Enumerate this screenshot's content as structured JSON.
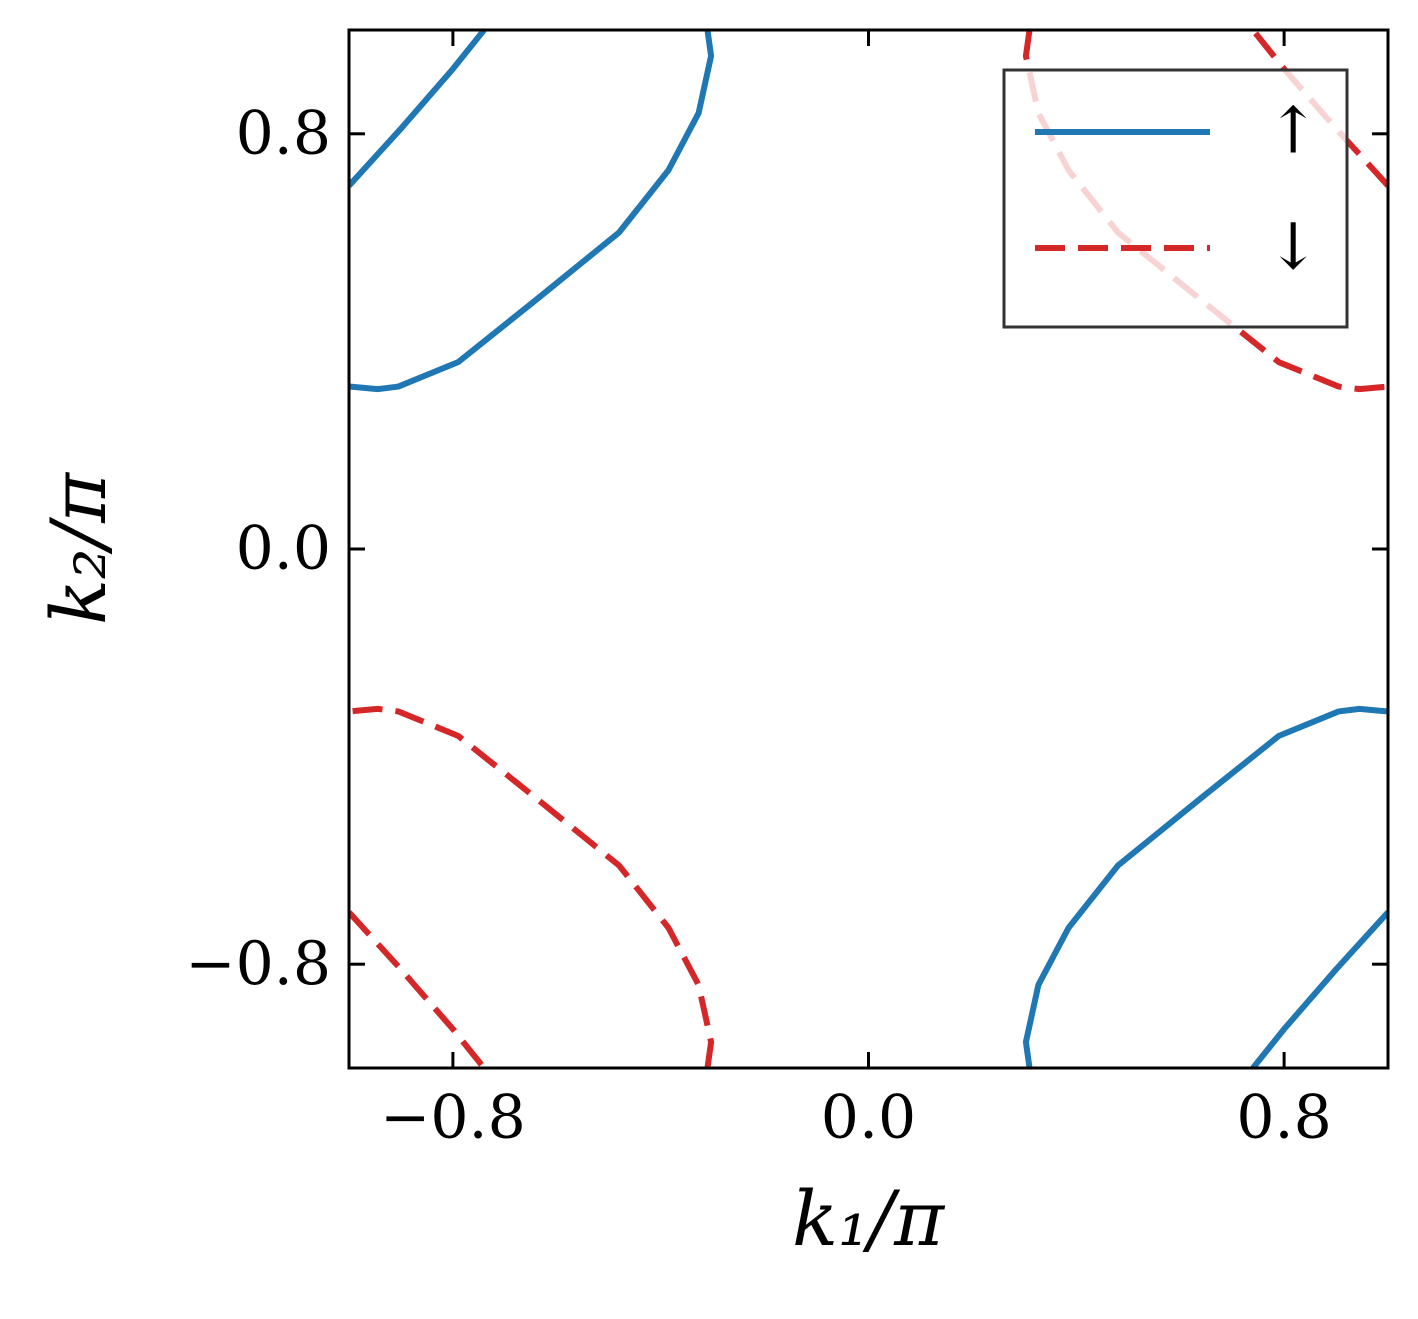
{
  "chart_data": {
    "type": "line",
    "xlabel": "k₁/π",
    "ylabel": "k₂/π",
    "xlim": [
      -1,
      1
    ],
    "ylim": [
      -1,
      1
    ],
    "xticks": [
      {
        "value": -0.8,
        "label": "−0.8"
      },
      {
        "value": 0,
        "label": "0.0"
      },
      {
        "value": 0.8,
        "label": "0.8"
      }
    ],
    "yticks": [
      {
        "value": -0.8,
        "label": "−0.8"
      },
      {
        "value": 0,
        "label": "0.0"
      },
      {
        "value": 0.8,
        "label": "0.8"
      }
    ],
    "grid": false,
    "legend": "upper right",
    "series": [
      {
        "name": "↑",
        "color": "#1f77b4",
        "dashed": false,
        "x": [
          -1.0,
          -0.9,
          -0.8,
          -0.74,
          null,
          -0.31,
          -0.303,
          -0.327,
          -0.385,
          -0.48,
          -0.64,
          -0.79,
          -0.905,
          -0.945,
          -1.0,
          null,
          1.0,
          0.9,
          0.8,
          0.74,
          null,
          0.31,
          0.303,
          0.327,
          0.385,
          0.48,
          0.64,
          0.79,
          0.905,
          0.945,
          1.0
        ],
        "y": [
          0.7,
          0.81,
          0.925,
          1.0,
          null,
          1.0,
          0.95,
          0.84,
          0.73,
          0.61,
          0.48,
          0.36,
          0.313,
          0.308,
          0.313,
          null,
          -0.7,
          -0.81,
          -0.925,
          -1.0,
          null,
          -1.0,
          -0.95,
          -0.84,
          -0.73,
          -0.61,
          -0.48,
          -0.36,
          -0.313,
          -0.308,
          -0.313
        ]
      },
      {
        "name": "↓",
        "color": "#d62728",
        "dashed": true,
        "x": [
          -1.0,
          -0.9,
          -0.8,
          -0.74,
          null,
          -0.31,
          -0.303,
          -0.327,
          -0.385,
          -0.48,
          -0.64,
          -0.79,
          -0.905,
          -0.945,
          -1.0,
          null,
          1.0,
          0.9,
          0.8,
          0.74,
          null,
          0.31,
          0.303,
          0.327,
          0.385,
          0.48,
          0.64,
          0.79,
          0.905,
          0.945,
          1.0
        ],
        "y": [
          -0.7,
          -0.81,
          -0.925,
          -1.0,
          null,
          -1.0,
          -0.95,
          -0.84,
          -0.73,
          -0.61,
          -0.48,
          -0.36,
          -0.313,
          -0.308,
          -0.313,
          null,
          0.7,
          0.81,
          0.925,
          1.0,
          null,
          1.0,
          0.95,
          0.84,
          0.73,
          0.61,
          0.48,
          0.36,
          0.313,
          0.308,
          0.313
        ]
      }
    ]
  }
}
